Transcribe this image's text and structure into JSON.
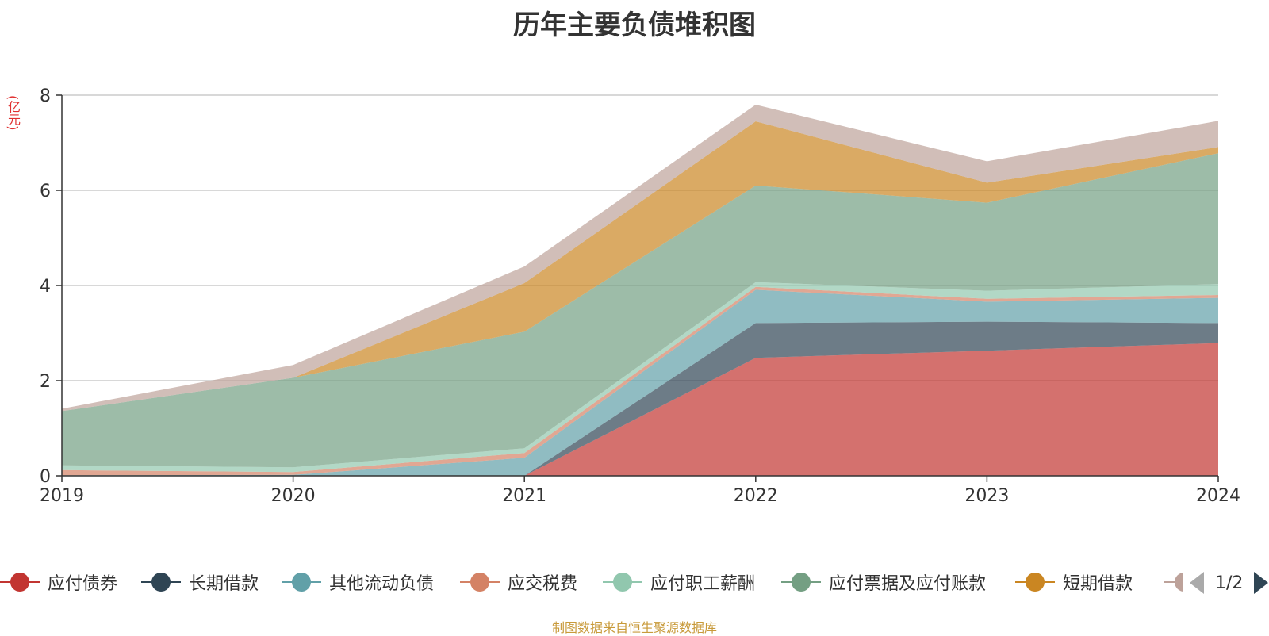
{
  "chart_data": {
    "type": "area",
    "stacked": true,
    "title": "历年主要负债堆积图",
    "ylabel": "(亿元)",
    "xlabel": "",
    "x": [
      "2019",
      "2020",
      "2021",
      "2022",
      "2023",
      "2024"
    ],
    "ylim": [
      0,
      8
    ],
    "yticks": [
      "0",
      "2",
      "4",
      "6",
      "8"
    ],
    "grid": true,
    "legend_position": "bottom",
    "series": [
      {
        "name": "应付债券",
        "color": "#c23531",
        "values": [
          0,
          0,
          0,
          2.48,
          2.63,
          2.79
        ]
      },
      {
        "name": "长期借款",
        "color": "#2f4554",
        "values": [
          0,
          0,
          0,
          0.73,
          0.61,
          0.42
        ]
      },
      {
        "name": "其他流动负债",
        "color": "#61a0a8",
        "values": [
          0.01,
          0.02,
          0.38,
          0.7,
          0.42,
          0.53
        ]
      },
      {
        "name": "应交税费",
        "color": "#d48265",
        "values": [
          0.11,
          0.06,
          0.1,
          0.06,
          0.06,
          0.06
        ]
      },
      {
        "name": "应付职工薪酬",
        "color": "#91c7ae",
        "values": [
          0.1,
          0.1,
          0.1,
          0.1,
          0.17,
          0.23
        ]
      },
      {
        "name": "应付票据及应付账款",
        "color": "#749f83",
        "values": [
          1.14,
          1.88,
          2.45,
          2.03,
          1.85,
          2.75
        ]
      },
      {
        "name": "短期借款",
        "color": "#ca8622",
        "values": [
          0,
          0,
          1.02,
          1.35,
          0.42,
          0.13
        ]
      },
      {
        "name": "",
        "color": "#bda29a",
        "values": [
          0.05,
          0.27,
          0.35,
          0.35,
          0.45,
          0.55
        ]
      }
    ]
  },
  "legend": {
    "page": "1/2",
    "prev_icon": "triangle-left-icon",
    "next_icon": "triangle-right-icon"
  },
  "footer": {
    "source": "制图数据来自恒生聚源数据库"
  }
}
